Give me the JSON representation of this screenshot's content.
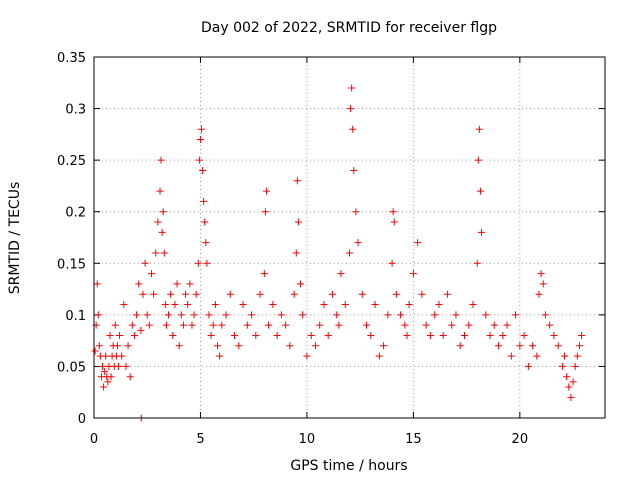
{
  "chart_data": {
    "type": "scatter",
    "title": "Day 002 of 2022, SRMTID for receiver flgp",
    "xlabel": "GPS time / hours",
    "ylabel": "SRMTID / TECUs",
    "xlim": [
      0,
      24
    ],
    "ylim": [
      0,
      0.35
    ],
    "xticks": [
      0,
      5,
      10,
      15,
      20
    ],
    "xtick_labels": [
      "0",
      "5",
      "10",
      "15",
      "20"
    ],
    "yticks": [
      0,
      0.05,
      0.1,
      0.15,
      0.2,
      0.25,
      0.3,
      0.35
    ],
    "ytick_labels": [
      "0",
      "0.05",
      "0.1",
      "0.15",
      "0.2",
      "0.25",
      "0.3",
      "0.35"
    ],
    "grid": true,
    "legend": "none",
    "marker": "plus",
    "color": "#ff0000",
    "series": [
      {
        "x": [
          0.05,
          0.1,
          0.15,
          0.2,
          0.25,
          0.3,
          0.35,
          0.4,
          0.45,
          0.5,
          0.55,
          0.6,
          0.65,
          0.7,
          0.75,
          0.8,
          0.85,
          0.9,
          0.95,
          1.0,
          1.05,
          1.1,
          1.15,
          1.2,
          1.3,
          1.4,
          1.5,
          1.6,
          1.7,
          1.8,
          1.9,
          2.0,
          2.1,
          2.2,
          2.22,
          2.3,
          2.4,
          2.5,
          2.6,
          2.7,
          2.8,
          2.9,
          3.0,
          3.1,
          3.15,
          3.2,
          3.25,
          3.3,
          3.35,
          3.4,
          3.5,
          3.6,
          3.7,
          3.8,
          3.9,
          4.0,
          4.1,
          4.2,
          4.3,
          4.4,
          4.5,
          4.6,
          4.7,
          4.8,
          4.9,
          4.95,
          5.0,
          5.05,
          5.1,
          5.15,
          5.2,
          5.25,
          5.3,
          5.4,
          5.5,
          5.6,
          5.7,
          5.8,
          5.9,
          6.0,
          6.2,
          6.4,
          6.6,
          6.8,
          7.0,
          7.2,
          7.4,
          7.6,
          7.8,
          8.0,
          8.05,
          8.1,
          8.2,
          8.4,
          8.6,
          8.8,
          9.0,
          9.2,
          9.4,
          9.5,
          9.55,
          9.6,
          9.7,
          9.8,
          10.0,
          10.2,
          10.4,
          10.6,
          10.8,
          11.0,
          11.2,
          11.4,
          11.5,
          11.6,
          11.8,
          12.0,
          12.05,
          12.1,
          12.15,
          12.2,
          12.3,
          12.4,
          12.6,
          12.8,
          13.0,
          13.2,
          13.4,
          13.6,
          13.8,
          14.0,
          14.05,
          14.1,
          14.2,
          14.4,
          14.6,
          14.7,
          14.8,
          15.0,
          15.2,
          15.4,
          15.6,
          15.8,
          16.0,
          16.2,
          16.4,
          16.6,
          16.8,
          17.0,
          17.2,
          17.4,
          17.6,
          17.8,
          18.0,
          18.05,
          18.1,
          18.15,
          18.2,
          18.4,
          18.6,
          18.8,
          19.0,
          19.2,
          19.4,
          19.6,
          19.8,
          20.0,
          20.2,
          20.4,
          20.6,
          20.8,
          20.9,
          21.0,
          21.1,
          21.2,
          21.4,
          21.6,
          21.8,
          22.0,
          22.1,
          22.2,
          22.3,
          22.4,
          22.5,
          22.6,
          22.7,
          22.8,
          22.9
        ],
        "y": [
          0.065,
          0.09,
          0.13,
          0.1,
          0.07,
          0.06,
          0.04,
          0.05,
          0.03,
          0.045,
          0.06,
          0.04,
          0.035,
          0.05,
          0.08,
          0.04,
          0.06,
          0.07,
          0.05,
          0.09,
          0.06,
          0.07,
          0.05,
          0.08,
          0.06,
          0.11,
          0.05,
          0.07,
          0.04,
          0.09,
          0.08,
          0.1,
          0.13,
          0.085,
          0.0,
          0.12,
          0.15,
          0.1,
          0.09,
          0.14,
          0.12,
          0.16,
          0.19,
          0.22,
          0.25,
          0.18,
          0.2,
          0.16,
          0.11,
          0.09,
          0.1,
          0.12,
          0.08,
          0.11,
          0.13,
          0.07,
          0.1,
          0.09,
          0.12,
          0.11,
          0.13,
          0.09,
          0.1,
          0.12,
          0.15,
          0.25,
          0.27,
          0.28,
          0.24,
          0.21,
          0.19,
          0.17,
          0.15,
          0.1,
          0.08,
          0.09,
          0.11,
          0.07,
          0.06,
          0.09,
          0.1,
          0.12,
          0.08,
          0.07,
          0.11,
          0.09,
          0.1,
          0.08,
          0.12,
          0.14,
          0.2,
          0.22,
          0.09,
          0.11,
          0.08,
          0.1,
          0.09,
          0.07,
          0.12,
          0.16,
          0.23,
          0.19,
          0.13,
          0.1,
          0.06,
          0.08,
          0.07,
          0.09,
          0.11,
          0.08,
          0.12,
          0.1,
          0.09,
          0.14,
          0.11,
          0.16,
          0.3,
          0.32,
          0.28,
          0.24,
          0.2,
          0.17,
          0.12,
          0.09,
          0.08,
          0.11,
          0.06,
          0.07,
          0.1,
          0.15,
          0.2,
          0.19,
          0.12,
          0.1,
          0.09,
          0.08,
          0.11,
          0.14,
          0.17,
          0.12,
          0.09,
          0.08,
          0.1,
          0.11,
          0.08,
          0.12,
          0.09,
          0.1,
          0.07,
          0.08,
          0.09,
          0.11,
          0.15,
          0.25,
          0.28,
          0.22,
          0.18,
          0.1,
          0.08,
          0.09,
          0.07,
          0.08,
          0.09,
          0.06,
          0.1,
          0.07,
          0.08,
          0.05,
          0.07,
          0.06,
          0.12,
          0.14,
          0.13,
          0.1,
          0.09,
          0.08,
          0.07,
          0.05,
          0.06,
          0.04,
          0.03,
          0.02,
          0.035,
          0.05,
          0.06,
          0.07,
          0.08
        ]
      }
    ]
  }
}
